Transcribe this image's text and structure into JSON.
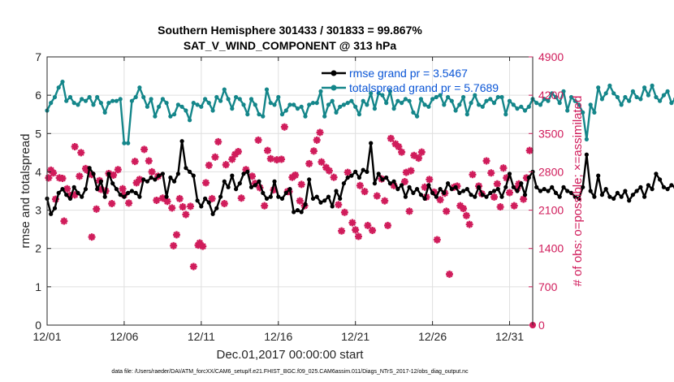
{
  "chart_data": {
    "type": "line",
    "title": "Southern Hemisphere 301433 / 301833 = 99.867%",
    "subtitle": "SAT_V_WIND_COMPONENT @ 313 hPa",
    "xlabel": "Dec.01,2017 00:00:00 start",
    "ylabel": "rmse and totalspread",
    "ylabel_right": "# of obs: o=possible; ×=assimilated",
    "xlim": [
      0,
      31.5
    ],
    "ylim": [
      0,
      7
    ],
    "ylim_right": [
      0,
      4900
    ],
    "x_ticks": [
      0,
      5,
      10,
      15,
      20,
      25,
      30
    ],
    "x_tick_labels": [
      "12/01",
      "12/06",
      "12/11",
      "12/16",
      "12/21",
      "12/26",
      "12/31"
    ],
    "y_ticks": [
      0,
      1,
      2,
      3,
      4,
      5,
      6,
      7
    ],
    "y_ticks_right": [
      0,
      700,
      1400,
      2100,
      2800,
      3500,
      4200,
      4900
    ],
    "grid": true,
    "legend_position": "top-right",
    "footer": "data file: /Users/raeder/DAI/ATM_forcXX/CAM6_setup/f.e21.FHIST_BGC.f09_025.CAM6assim.011/Diags_NTrS_2017-12/obs_diag_output.nc",
    "series": [
      {
        "name": "rmse grand pr = 3.5467",
        "color": "#000000",
        "marker": "circle",
        "axis": "left",
        "x_start": 0,
        "x_step": 0.25,
        "values": [
          3.3,
          2.9,
          3.05,
          3.45,
          3.55,
          3.4,
          3.3,
          3.6,
          3.45,
          3.35,
          3.55,
          4.1,
          3.95,
          3.55,
          3.75,
          3.35,
          3.95,
          3.7,
          3.55,
          3.4,
          3.35,
          3.45,
          3.5,
          3.45,
          3.35,
          3.8,
          3.75,
          3.85,
          3.8,
          3.9,
          3.95,
          3.35,
          3.85,
          3.75,
          3.95,
          4.8,
          4.1,
          4.0,
          3.9,
          3.25,
          3.1,
          3.3,
          3.2,
          2.9,
          3.05,
          3.35,
          3.75,
          3.6,
          3.9,
          3.55,
          3.7,
          3.95,
          4.0,
          3.6,
          3.65,
          3.75,
          3.45,
          3.3,
          3.35,
          3.75,
          3.35,
          3.3,
          3.45,
          3.55,
          2.95,
          3.0,
          2.95,
          3.15,
          3.8,
          3.3,
          3.35,
          3.2,
          3.25,
          3.35,
          3.1,
          3.5,
          3.3,
          3.7,
          3.85,
          3.9,
          4.0,
          3.85,
          4.05,
          4.0,
          4.75,
          3.7,
          3.95,
          3.8,
          3.85,
          3.7,
          3.75,
          3.55,
          3.65,
          3.35,
          3.6,
          3.45,
          3.55,
          3.4,
          3.3,
          3.65,
          3.45,
          3.35,
          3.55,
          3.45,
          3.7,
          3.55,
          3.6,
          3.45,
          3.5,
          3.55,
          3.4,
          3.35,
          3.6,
          3.4,
          3.35,
          3.45,
          3.5,
          3.55,
          3.35,
          3.6,
          3.95,
          3.6,
          3.5,
          3.7,
          3.4,
          3.85,
          4.0,
          3.6,
          3.5,
          3.55,
          3.5,
          3.6,
          3.45,
          3.35,
          3.6,
          3.5,
          3.45,
          3.35,
          3.3,
          3.6,
          4.45,
          3.5,
          3.35,
          3.9,
          3.4,
          3.55,
          3.35,
          3.3,
          3.45,
          3.35,
          3.5,
          3.25,
          3.4,
          3.5,
          3.6,
          3.35,
          3.65,
          3.55,
          3.95,
          3.8,
          3.6,
          3.55,
          3.65,
          3.6
        ]
      },
      {
        "name": "totalspread grand pr = 5.7689",
        "color": "#14868a",
        "marker": "circle",
        "axis": "left",
        "x_start": 0,
        "x_step": 0.25,
        "values": [
          5.6,
          5.8,
          5.95,
          6.2,
          6.35,
          5.85,
          5.95,
          5.8,
          5.75,
          5.9,
          5.85,
          5.95,
          5.75,
          5.95,
          5.8,
          5.55,
          5.8,
          5.85,
          5.85,
          5.9,
          4.75,
          4.75,
          5.85,
          5.95,
          6.2,
          5.95,
          5.7,
          5.9,
          5.45,
          5.7,
          5.9,
          5.8,
          5.45,
          5.5,
          5.75,
          5.7,
          5.6,
          5.35,
          5.8,
          5.75,
          5.7,
          5.9,
          5.8,
          5.6,
          5.95,
          5.85,
          6.15,
          5.9,
          5.65,
          5.95,
          5.9,
          5.75,
          5.5,
          5.9,
          5.75,
          5.5,
          5.45,
          6.15,
          5.8,
          5.75,
          5.95,
          5.5,
          5.6,
          5.75,
          5.75,
          5.65,
          5.7,
          5.45,
          5.75,
          5.8,
          5.8,
          6.1,
          5.45,
          5.75,
          5.85,
          5.55,
          5.7,
          5.75,
          5.8,
          5.85,
          5.7,
          5.5,
          5.85,
          5.75,
          6.05,
          5.65,
          6.05,
          6.0,
          5.8,
          6.1,
          5.65,
          5.85,
          5.8,
          5.9,
          5.85,
          5.55,
          5.45,
          5.9,
          5.75,
          5.7,
          5.9,
          5.95,
          6.0,
          5.75,
          5.95,
          5.85,
          5.6,
          5.75,
          5.95,
          5.5,
          5.8,
          6.0,
          5.75,
          5.7,
          5.85,
          5.9,
          5.8,
          5.95,
          5.95,
          5.5,
          5.85,
          5.75,
          5.65,
          5.7,
          5.6,
          5.7,
          5.9,
          5.8,
          5.75,
          5.9,
          5.85,
          6.05,
          5.95,
          5.8,
          6.1,
          5.6,
          5.95,
          5.85,
          5.75,
          5.55,
          4.85,
          5.75,
          5.55,
          6.2,
          5.9,
          6.05,
          6.25,
          6.05,
          5.95,
          5.75,
          5.95,
          5.85,
          6.1,
          5.95,
          5.9,
          6.2,
          6.0,
          6.25,
          5.95,
          5.85,
          6.0,
          6.1,
          5.8,
          5.9
        ]
      },
      {
        "name": "possible obs",
        "color": "#d01c5b",
        "marker": "circle",
        "axis": "right",
        "points": [
          [
            31.5,
            0
          ]
        ]
      },
      {
        "name": "assimilated obs",
        "color": "#d01c5b",
        "marker": "x",
        "axis": "right",
        "points": [
          [
            0.1,
            2690
          ],
          [
            0.25,
            2830
          ],
          [
            0.4,
            2780
          ],
          [
            0.55,
            2300
          ],
          [
            0.8,
            2690
          ],
          [
            1.0,
            2680
          ],
          [
            1.1,
            1900
          ],
          [
            1.3,
            2490
          ],
          [
            1.5,
            2370
          ],
          [
            1.8,
            2380
          ],
          [
            1.8,
            3260
          ],
          [
            2.1,
            2720
          ],
          [
            2.2,
            3150
          ],
          [
            2.5,
            2860
          ],
          [
            2.6,
            2830
          ],
          [
            2.9,
            1610
          ],
          [
            2.9,
            2750
          ],
          [
            3.2,
            2120
          ],
          [
            3.4,
            2640
          ],
          [
            3.5,
            2480
          ],
          [
            3.8,
            2450
          ],
          [
            4.0,
            2770
          ],
          [
            4.2,
            2220
          ],
          [
            4.3,
            2740
          ],
          [
            4.6,
            2840
          ],
          [
            4.9,
            2490
          ],
          [
            5.0,
            2380
          ],
          [
            5.3,
            2230
          ],
          [
            5.7,
            2990
          ],
          [
            5.8,
            2600
          ],
          [
            6.0,
            2660
          ],
          [
            6.3,
            3210
          ],
          [
            6.6,
            3000
          ],
          [
            6.8,
            2800
          ],
          [
            7.1,
            2280
          ],
          [
            7.2,
            2720
          ],
          [
            7.5,
            2320
          ],
          [
            7.8,
            2260
          ],
          [
            8.1,
            2140
          ],
          [
            8.2,
            1450
          ],
          [
            8.4,
            1650
          ],
          [
            8.6,
            2310
          ],
          [
            8.8,
            2160
          ],
          [
            9.0,
            2020
          ],
          [
            9.3,
            2170
          ],
          [
            9.5,
            1070
          ],
          [
            9.8,
            1460
          ],
          [
            9.9,
            1500
          ],
          [
            10.1,
            1440
          ],
          [
            10.3,
            2600
          ],
          [
            10.5,
            2920
          ],
          [
            10.7,
            2310
          ],
          [
            10.9,
            3070
          ],
          [
            11.1,
            3350
          ],
          [
            11.5,
            2220
          ],
          [
            11.6,
            2930
          ],
          [
            12.0,
            3030
          ],
          [
            12.2,
            3120
          ],
          [
            12.4,
            3170
          ],
          [
            12.6,
            2320
          ],
          [
            12.9,
            2840
          ],
          [
            13.3,
            2720
          ],
          [
            13.5,
            2590
          ],
          [
            13.7,
            3380
          ],
          [
            13.8,
            2510
          ],
          [
            14.1,
            2180
          ],
          [
            14.3,
            3190
          ],
          [
            14.5,
            3040
          ],
          [
            14.7,
            2470
          ],
          [
            14.9,
            3020
          ],
          [
            15.2,
            3030
          ],
          [
            15.4,
            3620
          ],
          [
            15.6,
            2440
          ],
          [
            15.7,
            2440
          ],
          [
            15.9,
            2700
          ],
          [
            16.1,
            2740
          ],
          [
            16.4,
            2270
          ],
          [
            16.5,
            2570
          ],
          [
            16.7,
            2180
          ],
          [
            17.0,
            2950
          ],
          [
            17.3,
            3180
          ],
          [
            17.5,
            3380
          ],
          [
            17.7,
            3520
          ],
          [
            17.8,
            2980
          ],
          [
            18.1,
            2880
          ],
          [
            18.3,
            2820
          ],
          [
            18.6,
            2700
          ],
          [
            18.9,
            2200
          ],
          [
            19.1,
            1720
          ],
          [
            19.3,
            2060
          ],
          [
            19.5,
            2790
          ],
          [
            19.8,
            1870
          ],
          [
            20.0,
            1740
          ],
          [
            20.2,
            1620
          ],
          [
            20.3,
            2550
          ],
          [
            20.6,
            2440
          ],
          [
            20.8,
            1820
          ],
          [
            21.1,
            1730
          ],
          [
            21.4,
            2360
          ],
          [
            21.7,
            2670
          ],
          [
            21.9,
            2270
          ],
          [
            22.1,
            1820
          ],
          [
            22.3,
            3410
          ],
          [
            22.5,
            2550
          ],
          [
            22.6,
            3310
          ],
          [
            22.8,
            3260
          ],
          [
            23.0,
            3160
          ],
          [
            23.2,
            2620
          ],
          [
            23.3,
            2790
          ],
          [
            23.5,
            2080
          ],
          [
            23.6,
            2820
          ],
          [
            23.8,
            3100
          ],
          [
            24.1,
            3050
          ],
          [
            24.3,
            3160
          ],
          [
            24.5,
            2520
          ],
          [
            24.6,
            2340
          ],
          [
            24.8,
            2660
          ],
          [
            25.1,
            2430
          ],
          [
            25.3,
            1560
          ],
          [
            25.5,
            2290
          ],
          [
            25.8,
            2410
          ],
          [
            25.9,
            2080
          ],
          [
            26.1,
            930
          ],
          [
            26.4,
            2520
          ],
          [
            26.6,
            2540
          ],
          [
            26.8,
            2180
          ],
          [
            27.0,
            2130
          ],
          [
            27.2,
            2000
          ],
          [
            27.4,
            1840
          ],
          [
            27.6,
            2750
          ],
          [
            28.0,
            2540
          ],
          [
            28.2,
            2400
          ],
          [
            28.5,
            3000
          ],
          [
            28.8,
            2780
          ],
          [
            29.0,
            2340
          ],
          [
            29.2,
            2580
          ],
          [
            29.4,
            2160
          ],
          [
            29.6,
            2870
          ],
          [
            29.8,
            2690
          ],
          [
            30.0,
            2420
          ],
          [
            30.3,
            2180
          ],
          [
            30.5,
            2500
          ],
          [
            30.6,
            2580
          ],
          [
            30.9,
            2300
          ],
          [
            31.1,
            2690
          ],
          [
            31.3,
            3190
          ]
        ]
      }
    ]
  }
}
